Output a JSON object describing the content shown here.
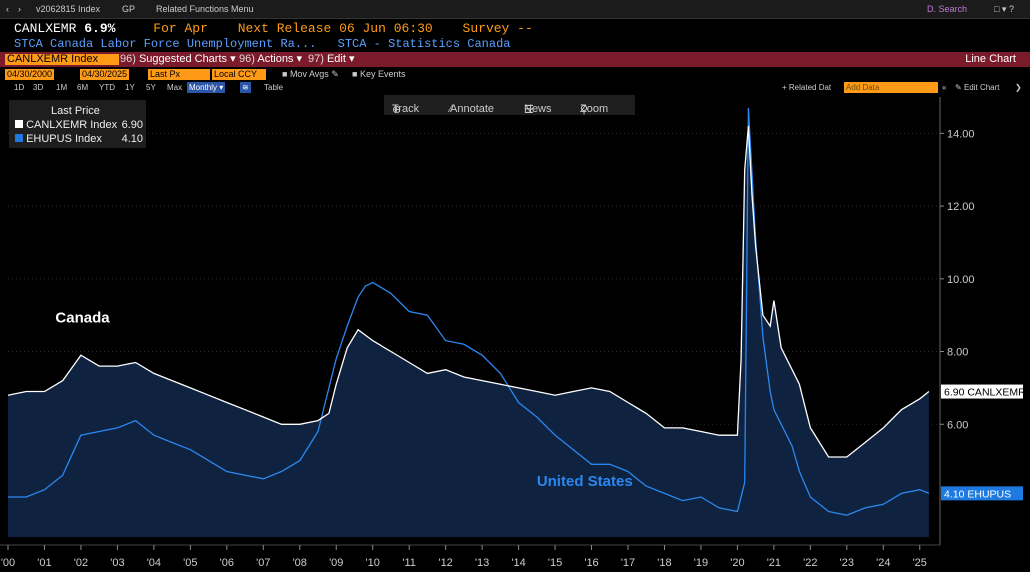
{
  "topbar": {
    "security": "v2062815 Index",
    "function": "GP",
    "menu": "Related Functions Menu",
    "search": "D. Search"
  },
  "header": {
    "ticker": "CANLXEMR",
    "value": "6.9%",
    "period": "For Apr",
    "next_release": "Next Release 06 Jun 06:30",
    "survey": "Survey --",
    "description": "STCA Canada Labor Force Unemployment Ra...",
    "source": "STCA - Statistics Canada"
  },
  "redbar": {
    "index": "CANLXEMR Index",
    "suggested_num": "96)",
    "suggested": "Suggested Charts",
    "actions_num": "96)",
    "actions": "Actions",
    "edit_num": "97)",
    "edit": "Edit",
    "chart_type": "Line Chart"
  },
  "controls": {
    "start_date": "04/30/2000",
    "end_date": "04/30/2025",
    "field": "Last Px",
    "currency": "Local CCY",
    "mov_avgs": "Mov Avgs",
    "key_events": "Key Events",
    "related_data": "+ Related Dat",
    "add_data_placeholder": "Add Data",
    "edit_chart": "Edit Chart"
  },
  "ranges": [
    "1D",
    "3D",
    "1M",
    "6M",
    "YTD",
    "1Y",
    "5Y",
    "Max"
  ],
  "frequency": "Monthly",
  "table_label": "Table",
  "tools": {
    "track": "Track",
    "annotate": "Annotate",
    "news": "News",
    "zoom": "Zoom"
  },
  "legend": {
    "title": "Last Price",
    "rows": [
      {
        "name": "CANLXEMR Index",
        "value": "6.90",
        "color": "#ffffff"
      },
      {
        "name": "EHUPUS Index",
        "value": "4.10",
        "color": "#1e7ae0"
      }
    ]
  },
  "colors": {
    "canada": "#ffffff",
    "us": "#2a88f0",
    "area": "#0f2240",
    "red_bar": "#7a1a2a",
    "orange": "#ff9a17"
  },
  "chart_data": {
    "type": "area",
    "y_ticks": [
      6,
      8,
      10,
      12,
      14
    ],
    "y_tick_labels": [
      "6.00",
      "8.00",
      "10.00",
      "12.00",
      "14.00"
    ],
    "ylim": [
      2.9,
      15.0
    ],
    "xlim": [
      2000.0,
      2025.5
    ],
    "x_tick_labels": [
      "'00",
      "'01",
      "'02",
      "'03",
      "'04",
      "'05",
      "'06",
      "'07",
      "'08",
      "'09",
      "'10",
      "'11",
      "'12",
      "'13",
      "'14",
      "'15",
      "'16",
      "'17",
      "'18",
      "'19",
      "'20",
      "'21",
      "'22",
      "'23",
      "'24",
      "'25"
    ],
    "annotations": [
      {
        "text": "Canada",
        "x": 2001.3,
        "y": 8.8,
        "color": "#ffffff"
      },
      {
        "text": "United States",
        "x": 2014.5,
        "y": 4.3,
        "color": "#2a88f0"
      }
    ],
    "series": [
      {
        "name": "CANLXEMR Index",
        "last_label": "6.90 CANLXEMR",
        "x": [
          2000.0,
          2000.5,
          2001.0,
          2001.5,
          2002.0,
          2002.5,
          2003.0,
          2003.5,
          2004.0,
          2004.5,
          2005.0,
          2005.5,
          2006.0,
          2006.5,
          2007.0,
          2007.5,
          2008.0,
          2008.5,
          2008.8,
          2009.0,
          2009.3,
          2009.6,
          2010.0,
          2010.5,
          2011.0,
          2011.5,
          2012.0,
          2012.5,
          2013.0,
          2013.5,
          2014.0,
          2014.5,
          2015.0,
          2015.5,
          2016.0,
          2016.5,
          2017.0,
          2017.5,
          2018.0,
          2018.5,
          2019.0,
          2019.5,
          2020.0,
          2020.1,
          2020.2,
          2020.3,
          2020.4,
          2020.5,
          2020.7,
          2020.9,
          2021.0,
          2021.2,
          2021.5,
          2021.7,
          2021.9,
          2022.0,
          2022.5,
          2023.0,
          2023.5,
          2024.0,
          2024.5,
          2025.0,
          2025.25
        ],
        "y": [
          6.8,
          6.9,
          6.9,
          7.2,
          7.9,
          7.6,
          7.6,
          7.7,
          7.4,
          7.2,
          7.0,
          6.8,
          6.6,
          6.4,
          6.2,
          6.0,
          6.0,
          6.1,
          6.3,
          7.1,
          8.1,
          8.6,
          8.3,
          8.0,
          7.7,
          7.4,
          7.5,
          7.3,
          7.2,
          7.1,
          7.0,
          6.9,
          6.8,
          6.9,
          7.0,
          6.9,
          6.6,
          6.3,
          5.9,
          5.9,
          5.8,
          5.7,
          5.7,
          7.8,
          13.0,
          14.2,
          12.3,
          10.9,
          9.0,
          8.7,
          9.4,
          8.1,
          7.5,
          7.1,
          6.3,
          5.9,
          5.1,
          5.1,
          5.5,
          5.9,
          6.4,
          6.7,
          6.9
        ]
      },
      {
        "name": "EHUPUS Index",
        "last_label": "4.10 EHUPUS",
        "x": [
          2000.0,
          2000.5,
          2001.0,
          2001.5,
          2002.0,
          2002.5,
          2003.0,
          2003.5,
          2004.0,
          2004.5,
          2005.0,
          2005.5,
          2006.0,
          2006.5,
          2007.0,
          2007.5,
          2008.0,
          2008.5,
          2009.0,
          2009.3,
          2009.6,
          2009.8,
          2010.0,
          2010.5,
          2011.0,
          2011.5,
          2012.0,
          2012.5,
          2013.0,
          2013.5,
          2014.0,
          2014.5,
          2015.0,
          2015.5,
          2016.0,
          2016.5,
          2017.0,
          2017.5,
          2018.0,
          2018.5,
          2019.0,
          2019.5,
          2020.0,
          2020.2,
          2020.3,
          2020.5,
          2020.7,
          2020.9,
          2021.0,
          2021.5,
          2021.7,
          2022.0,
          2022.5,
          2023.0,
          2023.5,
          2024.0,
          2024.5,
          2025.0,
          2025.25
        ],
        "y": [
          4.0,
          4.0,
          4.2,
          4.6,
          5.7,
          5.8,
          5.9,
          6.1,
          5.7,
          5.5,
          5.3,
          5.0,
          4.7,
          4.6,
          4.5,
          4.7,
          5.0,
          5.8,
          7.8,
          8.7,
          9.5,
          9.8,
          9.9,
          9.6,
          9.1,
          9.0,
          8.3,
          8.2,
          7.9,
          7.4,
          6.6,
          6.2,
          5.7,
          5.3,
          4.9,
          4.9,
          4.7,
          4.3,
          4.1,
          3.9,
          4.0,
          3.7,
          3.6,
          4.4,
          14.7,
          11.1,
          8.4,
          6.9,
          6.4,
          5.4,
          4.7,
          4.0,
          3.6,
          3.5,
          3.7,
          3.8,
          4.1,
          4.2,
          4.1
        ]
      }
    ]
  }
}
